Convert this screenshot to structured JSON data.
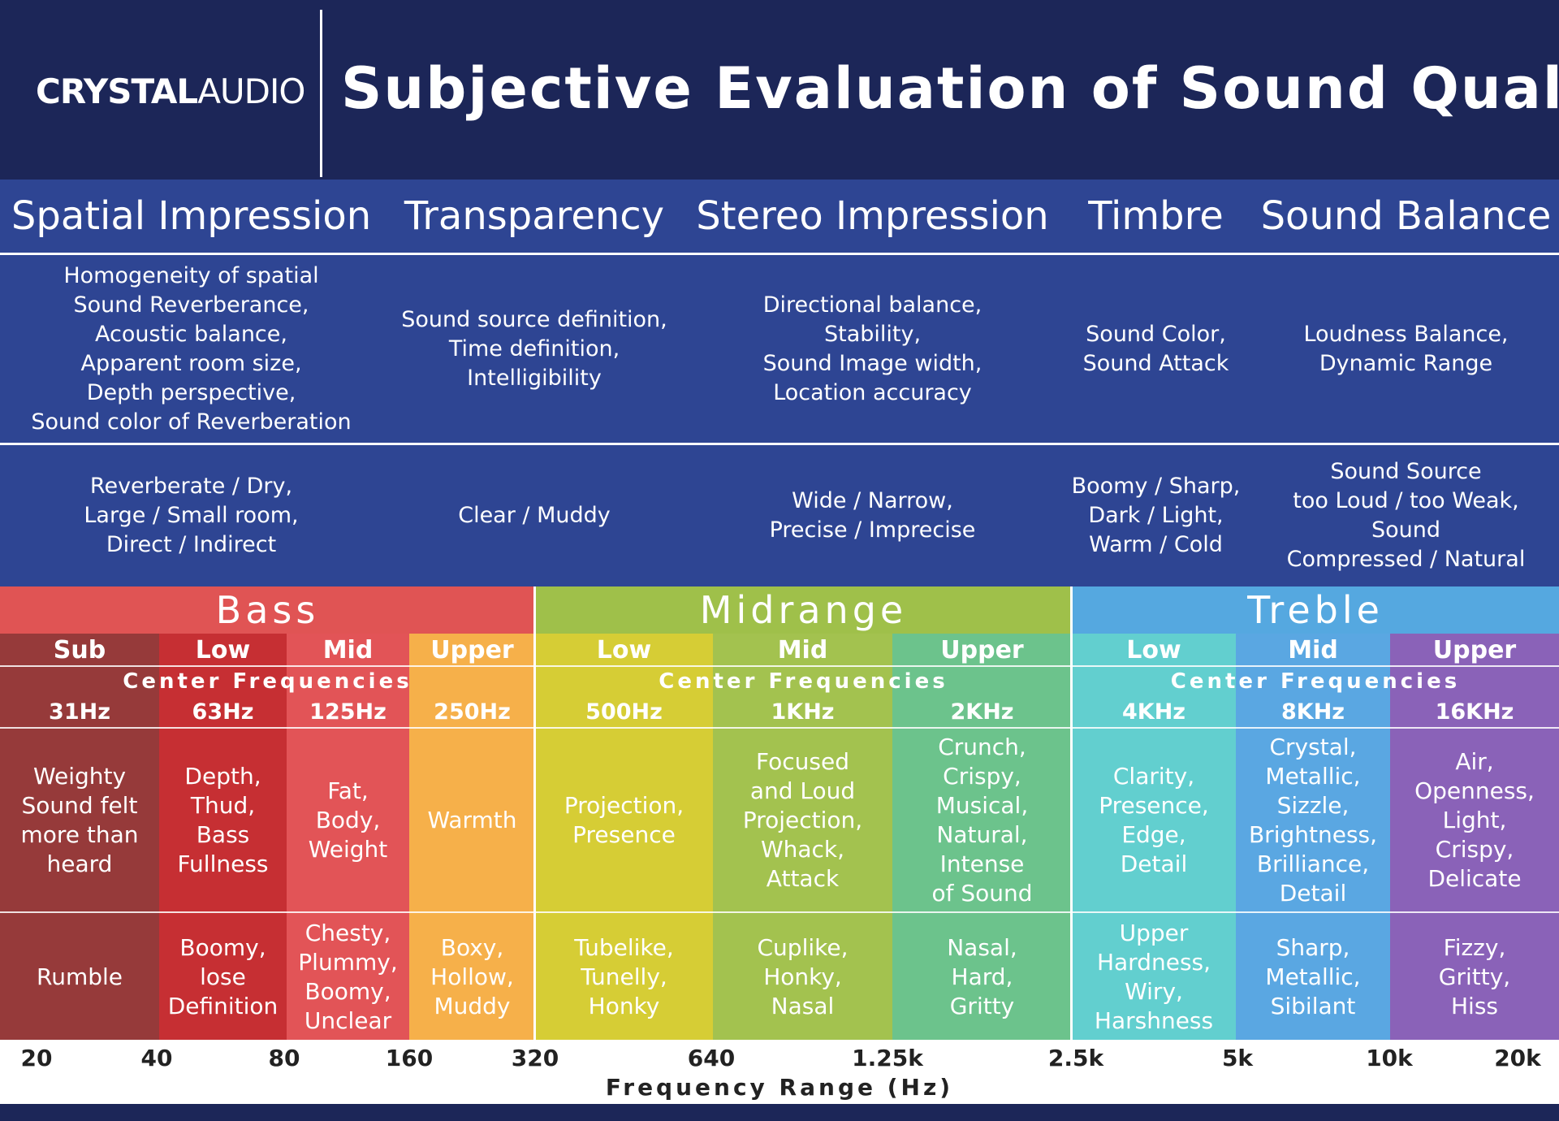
{
  "header": {
    "logo": {
      "bold": "CRYSTAL",
      "light": "AUDIO"
    },
    "title": "Subjective Evaluation of Sound Quality"
  },
  "attributes": [
    {
      "name": "Spatial Impression",
      "criteria": [
        "Homogeneity of spatial",
        "Sound Reverberance,",
        "Acoustic balance,",
        "Apparent room size,",
        "Depth perspective,",
        "Sound color of Reverberation"
      ],
      "descriptors": [
        "Reverberate / Dry,",
        "Large / Small room,",
        "Direct / Indirect"
      ]
    },
    {
      "name": "Transparency",
      "criteria": [
        "Sound source definition,",
        "Time definition,",
        "Intelligibility"
      ],
      "descriptors": [
        "Clear / Muddy"
      ]
    },
    {
      "name": "Stereo Impression",
      "criteria": [
        "Directional balance,",
        "Stability,",
        "Sound Image width,",
        "Location accuracy"
      ],
      "descriptors": [
        "Wide / Narrow,",
        "Precise / Imprecise"
      ]
    },
    {
      "name": "Timbre",
      "criteria": [
        "Sound Color,",
        "Sound Attack"
      ],
      "descriptors": [
        "Boomy / Sharp,",
        "Dark / Light,",
        "Warm / Cold"
      ]
    },
    {
      "name": "Sound Balance",
      "criteria": [
        "Loudness Balance,",
        "Dynamic Range"
      ],
      "descriptors": [
        "Sound Source",
        "too Loud / too Weak,",
        "Sound",
        "Compressed / Natural"
      ]
    }
  ],
  "bands": [
    {
      "name": "Bass",
      "center_label": "Center Frequencies",
      "ranges": [
        {
          "name": "Sub",
          "frequency": "31Hz",
          "qualities": [
            "Weighty",
            "Sound felt",
            "more than",
            "heard"
          ],
          "problems": [
            "Rumble"
          ]
        },
        {
          "name": "Low",
          "frequency": "63Hz",
          "qualities": [
            "Depth,",
            "Thud,",
            "Bass",
            "Fullness"
          ],
          "problems": [
            "Boomy,",
            "lose",
            "Definition"
          ]
        },
        {
          "name": "Mid",
          "frequency": "125Hz",
          "qualities": [
            "Fat,",
            "Body,",
            "Weight"
          ],
          "problems": [
            "Chesty,",
            "Plummy,",
            "Boomy,",
            "Unclear"
          ]
        },
        {
          "name": "Upper",
          "frequency": "250Hz",
          "qualities": [
            "Warmth"
          ],
          "problems": [
            "Boxy,",
            "Hollow,",
            "Muddy"
          ]
        }
      ]
    },
    {
      "name": "Midrange",
      "center_label": "Center Frequencies",
      "ranges": [
        {
          "name": "Low",
          "frequency": "500Hz",
          "qualities": [
            "Projection,",
            "Presence"
          ],
          "problems": [
            "Tubelike,",
            "Tunelly,",
            "Honky"
          ]
        },
        {
          "name": "Mid",
          "frequency": "1KHz",
          "qualities": [
            "Focused",
            "and Loud",
            "Projection,",
            "Whack,",
            "Attack"
          ],
          "problems": [
            "Cuplike,",
            "Honky,",
            "Nasal"
          ]
        },
        {
          "name": "Upper",
          "frequency": "2KHz",
          "qualities": [
            "Crunch,",
            "Crispy,",
            "Musical,",
            "Natural,",
            "Intense",
            "of Sound"
          ],
          "problems": [
            "Nasal,",
            "Hard,",
            "Gritty"
          ]
        }
      ]
    },
    {
      "name": "Treble",
      "center_label": "Center Frequencies",
      "ranges": [
        {
          "name": "Low",
          "frequency": "4KHz",
          "qualities": [
            "Clarity,",
            "Presence,",
            "Edge,",
            "Detail"
          ],
          "problems": [
            "Upper",
            "Hardness,",
            "Wiry,",
            "Harshness"
          ]
        },
        {
          "name": "Mid",
          "frequency": "8KHz",
          "qualities": [
            "Crystal,",
            "Metallic,",
            "Sizzle,",
            "Brightness,",
            "Brilliance,",
            "Detail"
          ],
          "problems": [
            "Sharp,",
            "Metallic,",
            "Sibilant"
          ]
        },
        {
          "name": "Upper",
          "frequency": "16KHz",
          "qualities": [
            "Air,",
            "Openness,",
            "Light,",
            "Crispy,",
            "Delicate"
          ],
          "problems": [
            "Fizzy,",
            "Gritty,",
            "Hiss"
          ]
        }
      ]
    }
  ],
  "axis": {
    "ticks": [
      "20",
      "40",
      "80",
      "160",
      "320",
      "640",
      "1.25k",
      "2.5k",
      "5k",
      "10k",
      "20k"
    ],
    "label": "Frequency Range (Hz)"
  }
}
